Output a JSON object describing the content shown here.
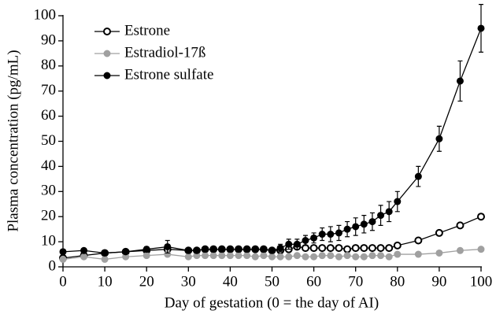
{
  "chart_data": {
    "type": "line",
    "xlabel": "Day of gestation (0 = the day of AI)",
    "ylabel": "Plasma concentration (pg/mL)",
    "x": [
      0,
      5,
      10,
      15,
      20,
      25,
      30,
      32,
      34,
      36,
      38,
      40,
      42,
      44,
      46,
      48,
      50,
      52,
      54,
      56,
      58,
      60,
      62,
      64,
      66,
      68,
      70,
      72,
      74,
      76,
      78,
      80,
      85,
      90,
      95,
      100
    ],
    "series": [
      {
        "name": "Estrone",
        "color": "#000000",
        "hollow": true,
        "values": [
          3.5,
          4.5,
          5.5,
          6,
          6.5,
          7,
          6.5,
          6.5,
          7,
          7,
          7,
          7,
          7,
          7,
          7,
          7,
          6.5,
          6.5,
          7,
          8,
          7.5,
          7.5,
          7.5,
          7.5,
          7.5,
          7,
          7.5,
          7.5,
          7.5,
          7.5,
          7.5,
          8.5,
          10.5,
          13.5,
          16.5,
          20
        ]
      },
      {
        "name": "Estradiol-17ß",
        "color": "#a0a0a0",
        "hollow": false,
        "values": [
          3,
          4,
          3,
          4,
          4.5,
          5,
          4,
          4.5,
          4.5,
          4.5,
          4.5,
          4.5,
          4.5,
          4.5,
          4,
          4.5,
          4,
          4,
          4,
          4.5,
          4,
          4,
          4.5,
          4.5,
          4,
          4.5,
          4,
          4,
          4.5,
          4.5,
          4,
          5,
          5,
          5.5,
          6.5,
          7
        ]
      },
      {
        "name": "Estrone sulfate",
        "color": "#000000",
        "hollow": false,
        "values": [
          6,
          6.5,
          5.5,
          6,
          7,
          8,
          6.5,
          6.5,
          7,
          7,
          7,
          7,
          7,
          7,
          7,
          7,
          6.5,
          7.5,
          9,
          9,
          10.5,
          11.5,
          13,
          13,
          13.5,
          15,
          16,
          17,
          18,
          20.5,
          22,
          26,
          36,
          51,
          74,
          95
        ],
        "errors": [
          1,
          0.5,
          0.5,
          0.5,
          1,
          2.5,
          1,
          1,
          1,
          1,
          1,
          1,
          1,
          1,
          1,
          1,
          1,
          1.5,
          2,
          2,
          2,
          2,
          2.5,
          3,
          3,
          3,
          3.5,
          3.5,
          3.5,
          4,
          4,
          4,
          4,
          5,
          8,
          9.5
        ]
      }
    ],
    "xlim": [
      0,
      100
    ],
    "xticks": [
      0,
      10,
      20,
      30,
      40,
      50,
      60,
      70,
      80,
      90,
      100
    ],
    "ylim": [
      0,
      100
    ],
    "yticks": [
      0,
      10,
      20,
      30,
      40,
      50,
      60,
      70,
      80,
      90,
      100
    ],
    "legend": "upper left"
  }
}
